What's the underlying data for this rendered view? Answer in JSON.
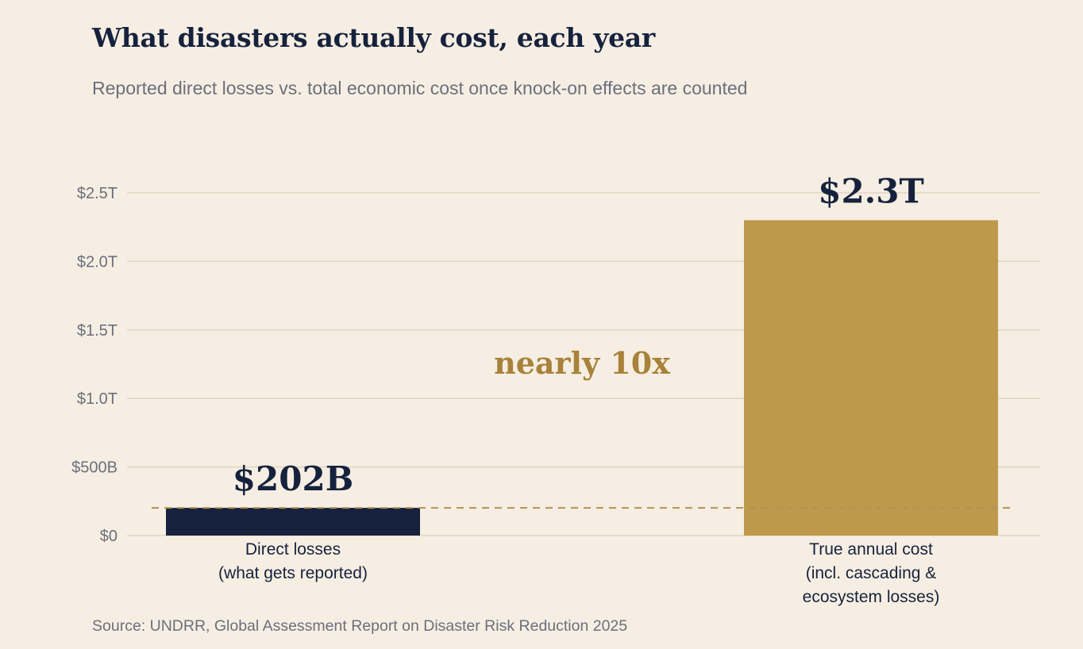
{
  "chart_data": {
    "type": "bar",
    "title": "What disasters actually cost, each year",
    "subtitle": "Reported direct losses vs. total economic cost once knock-on effects are counted",
    "source": "Source: UNDRR, Global Assessment Report on Disaster Risk Reduction 2025",
    "ylim": [
      0,
      2500
    ],
    "unit": "billion USD",
    "yticks": [
      0,
      500,
      1000,
      1500,
      2000,
      2500
    ],
    "ytick_labels": [
      "$0",
      "$500B",
      "$1.0T",
      "$1.5T",
      "$2.0T",
      "$2.5T"
    ],
    "grid": true,
    "categories": [
      [
        "Direct losses",
        "(what gets reported)"
      ],
      [
        "True annual cost",
        "(incl. cascading &",
        "ecosystem losses)"
      ]
    ],
    "values": [
      202,
      2300
    ],
    "value_labels": [
      "$202B",
      "$2.3T"
    ],
    "bar_colors": [
      "#16223d",
      "#be994c"
    ],
    "reference_line": {
      "value": 202,
      "style": "dashed",
      "color": "#b39256"
    },
    "annotation": {
      "text": "nearly 10x",
      "color": "#a8823a"
    }
  }
}
